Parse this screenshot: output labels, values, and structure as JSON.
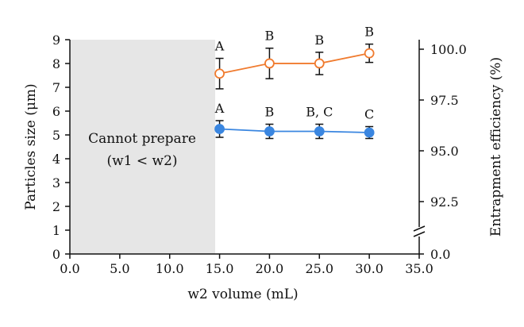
{
  "chart_data": {
    "type": "line",
    "x": [
      15,
      20,
      25,
      30
    ],
    "xlabel": "w2 volume (mL)",
    "xlim": [
      0,
      35
    ],
    "xticks": [
      "0.0",
      "5.0",
      "10.0",
      "15.0",
      "20.0",
      "25.0",
      "30.0",
      "35.0"
    ],
    "ylabel_left": "Particles size (μm)",
    "ylim_left": [
      0,
      9
    ],
    "yticks_left": [
      "0",
      "1",
      "2",
      "3",
      "4",
      "5",
      "6",
      "7",
      "8",
      "9"
    ],
    "ylabel_right": "Entrapment efficiency (%)",
    "yticks_right": [
      "0.0",
      "92.5",
      "95.0",
      "97.5",
      "100.0"
    ],
    "right_axis_break": true,
    "shaded_region": {
      "x_range": [
        0,
        14.5
      ],
      "label_line1": "Cannot prepare",
      "label_line2": "(w1 < w2)",
      "color": "#e6e6e6"
    },
    "series": [
      {
        "axis": "right",
        "color": "#f07b2f",
        "marker": "open-circle",
        "values": [
          98.8,
          99.3,
          99.3,
          99.8
        ],
        "error": [
          0.75,
          0.75,
          0.55,
          0.45
        ],
        "letters": [
          "A",
          "B",
          "B",
          "B"
        ]
      },
      {
        "axis": "left",
        "color": "#3a86e0",
        "marker": "filled-circle",
        "values": [
          5.25,
          5.15,
          5.15,
          5.1
        ],
        "error": [
          0.35,
          0.3,
          0.3,
          0.25
        ],
        "letters": [
          "A",
          "B",
          "B, C",
          "C"
        ]
      }
    ],
    "grid": false
  }
}
